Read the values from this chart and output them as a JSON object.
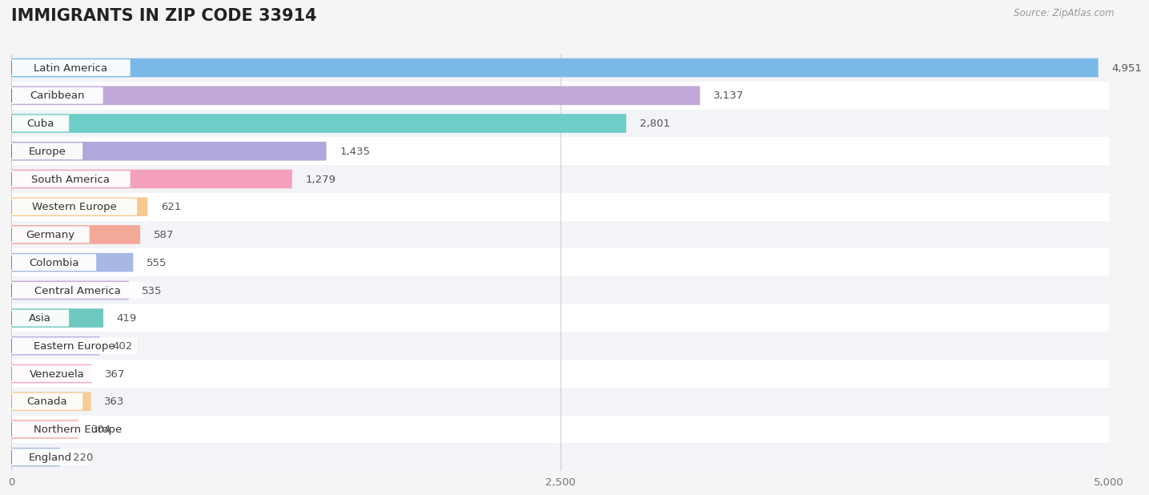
{
  "title": "IMMIGRANTS IN ZIP CODE 33914",
  "source_text": "Source: ZipAtlas.com",
  "categories": [
    "Latin America",
    "Caribbean",
    "Cuba",
    "Europe",
    "South America",
    "Western Europe",
    "Germany",
    "Colombia",
    "Central America",
    "Asia",
    "Eastern Europe",
    "Venezuela",
    "Canada",
    "Northern Europe",
    "England"
  ],
  "values": [
    4951,
    3137,
    2801,
    1435,
    1279,
    621,
    587,
    555,
    535,
    419,
    402,
    367,
    363,
    304,
    220
  ],
  "bar_colors": [
    "#7ab8e8",
    "#c0a8d8",
    "#6dcec8",
    "#b0a8dc",
    "#f4a0bc",
    "#f8c890",
    "#f4a898",
    "#a8b8e4",
    "#c4a8d4",
    "#6dc8c0",
    "#b8b0e4",
    "#f8a8c0",
    "#f8cc98",
    "#f4a8a0",
    "#a8b8e4"
  ],
  "dot_colors": [
    "#4a88c8",
    "#8858b0",
    "#3aa8a0",
    "#7070c0",
    "#e06088",
    "#d8a050",
    "#d87868",
    "#7088c8",
    "#9068b0",
    "#3aa8a0",
    "#8878c8",
    "#e878a8",
    "#d8a060",
    "#d07070",
    "#7088c8"
  ],
  "row_colors": [
    "#f2f4f8",
    "#ffffff",
    "#f2f4f8",
    "#ffffff",
    "#f2f4f8",
    "#ffffff",
    "#f2f4f8",
    "#ffffff",
    "#f2f4f8",
    "#ffffff",
    "#f2f4f8",
    "#ffffff",
    "#f2f4f8",
    "#ffffff",
    "#f2f4f8"
  ],
  "xlim": [
    0,
    5000
  ],
  "xticks": [
    0,
    2500,
    5000
  ],
  "xtick_labels": [
    "0",
    "2,500",
    "5,000"
  ],
  "background_color": "#f5f5f5",
  "title_fontsize": 15,
  "label_fontsize": 9.5,
  "value_fontsize": 9.5,
  "bar_height": 0.68
}
